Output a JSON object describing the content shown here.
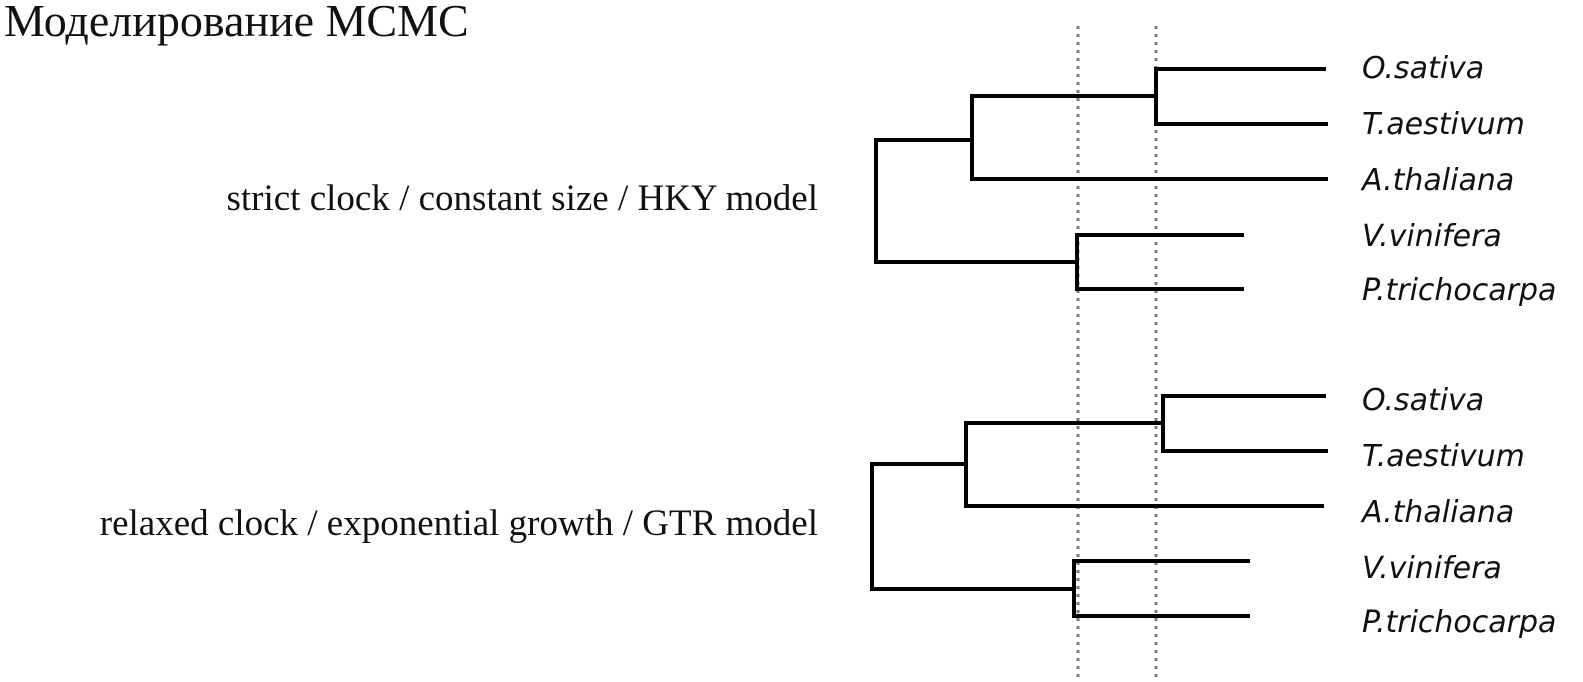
{
  "title": "Моделирование MCMC",
  "colors": {
    "branch": "#000000",
    "guide": "#777777",
    "text": "#111111"
  },
  "trees": [
    {
      "model_label": "strict clock / constant size / HKY model",
      "taxa": [
        "O.sativa",
        "T.aestivum",
        "A.thaliana",
        "V.vinifera",
        "P.trichocarpa"
      ]
    },
    {
      "model_label": "relaxed clock / exponential growth / GTR model",
      "taxa": [
        "O.sativa",
        "T.aestivum",
        "A.thaliana",
        "V.vinifera",
        "P.trichocarpa"
      ]
    }
  ]
}
